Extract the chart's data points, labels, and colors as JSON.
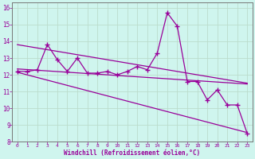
{
  "xlabel": "Windchill (Refroidissement éolien,°C)",
  "bg_color": "#cff5ee",
  "line_color": "#990099",
  "grid_color": "#bbddcc",
  "axis_color": "#777777",
  "xlim": [
    -0.5,
    23.5
  ],
  "ylim": [
    8,
    16.3
  ],
  "yticks": [
    8,
    9,
    10,
    11,
    12,
    13,
    14,
    15,
    16
  ],
  "xticks": [
    0,
    1,
    2,
    3,
    4,
    5,
    6,
    7,
    8,
    9,
    10,
    11,
    12,
    13,
    14,
    15,
    16,
    17,
    18,
    19,
    20,
    21,
    22,
    23
  ],
  "series1_x": [
    0,
    1,
    2,
    3,
    4,
    5,
    6,
    7,
    8,
    9,
    10,
    11,
    12,
    13,
    14,
    15,
    16,
    17,
    18,
    19,
    20,
    21,
    22,
    23
  ],
  "series1_y": [
    12.2,
    12.2,
    12.3,
    13.8,
    12.9,
    12.2,
    13.0,
    12.1,
    12.1,
    12.2,
    12.0,
    12.2,
    12.5,
    12.3,
    13.3,
    15.7,
    14.9,
    11.6,
    11.6,
    10.5,
    11.1,
    10.2,
    10.2,
    8.5
  ],
  "trend1_x": [
    0,
    23
  ],
  "trend1_y": [
    13.8,
    11.5
  ],
  "trend2_x": [
    0,
    23
  ],
  "trend2_y": [
    12.35,
    11.45
  ],
  "trend3_x": [
    0,
    23
  ],
  "trend3_y": [
    12.15,
    8.55
  ]
}
